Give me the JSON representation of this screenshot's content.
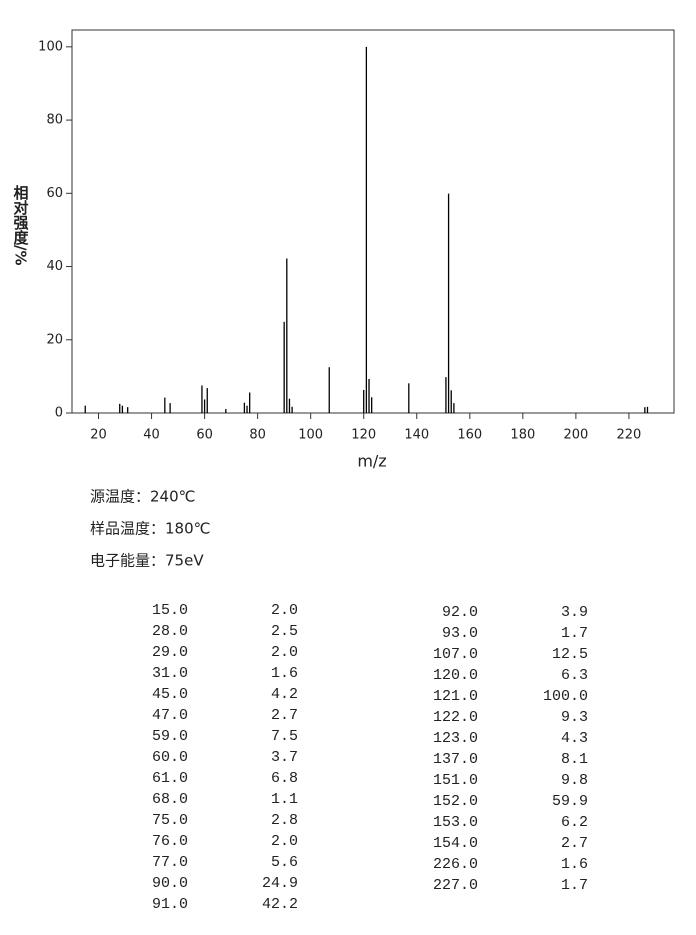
{
  "chart_data": {
    "type": "spectrum",
    "x_label": "m/z",
    "y_label": "相对强度/%",
    "x": [
      15,
      28,
      29,
      31,
      45,
      47,
      59,
      60,
      61,
      68,
      75,
      76,
      77,
      90,
      91,
      92,
      93,
      107,
      120,
      121,
      122,
      123,
      137,
      151,
      152,
      153,
      154,
      226,
      227
    ],
    "values": [
      2.0,
      2.5,
      2.0,
      1.6,
      4.2,
      2.7,
      7.5,
      3.7,
      6.8,
      1.1,
      2.8,
      2.0,
      5.6,
      24.9,
      42.2,
      3.9,
      1.7,
      12.5,
      6.3,
      100.0,
      9.3,
      4.3,
      8.1,
      9.8,
      59.9,
      6.2,
      2.7,
      1.6,
      1.7
    ],
    "color": "#000000",
    "xlim": [
      10,
      237
    ],
    "ylim": [
      0,
      104.6
    ],
    "xticks": [
      20,
      40,
      60,
      80,
      100,
      120,
      140,
      160,
      180,
      200,
      220
    ],
    "yticks": [
      0,
      20,
      40,
      60,
      80,
      100
    ]
  },
  "conditions": [
    "源温度：240℃",
    "样品温度：180℃",
    "电子能量：75eV"
  ],
  "table": {
    "rows": [
      [
        "15.0",
        "2.0"
      ],
      [
        "28.0",
        "2.5"
      ],
      [
        "29.0",
        "2.0"
      ],
      [
        "31.0",
        "1.6"
      ],
      [
        "45.0",
        "4.2"
      ],
      [
        "47.0",
        "2.7"
      ],
      [
        "59.0",
        "7.5"
      ],
      [
        "60.0",
        "3.7"
      ],
      [
        "61.0",
        "6.8"
      ],
      [
        "68.0",
        "1.1"
      ],
      [
        "75.0",
        "2.8"
      ],
      [
        "76.0",
        "2.0"
      ],
      [
        "77.0",
        "5.6"
      ],
      [
        "90.0",
        "24.9"
      ],
      [
        "91.0",
        "42.2"
      ],
      [
        "92.0",
        "3.9"
      ],
      [
        "93.0",
        "1.7"
      ],
      [
        "107.0",
        "12.5"
      ],
      [
        "120.0",
        "6.3"
      ],
      [
        "121.0",
        "100.0"
      ],
      [
        "122.0",
        "9.3"
      ],
      [
        "123.0",
        "4.3"
      ],
      [
        "137.0",
        "8.1"
      ],
      [
        "151.0",
        "9.8"
      ],
      [
        "152.0",
        "59.9"
      ],
      [
        "153.0",
        "6.2"
      ],
      [
        "154.0",
        "2.7"
      ],
      [
        "226.0",
        "1.6"
      ],
      [
        "227.0",
        "1.7"
      ]
    ]
  }
}
